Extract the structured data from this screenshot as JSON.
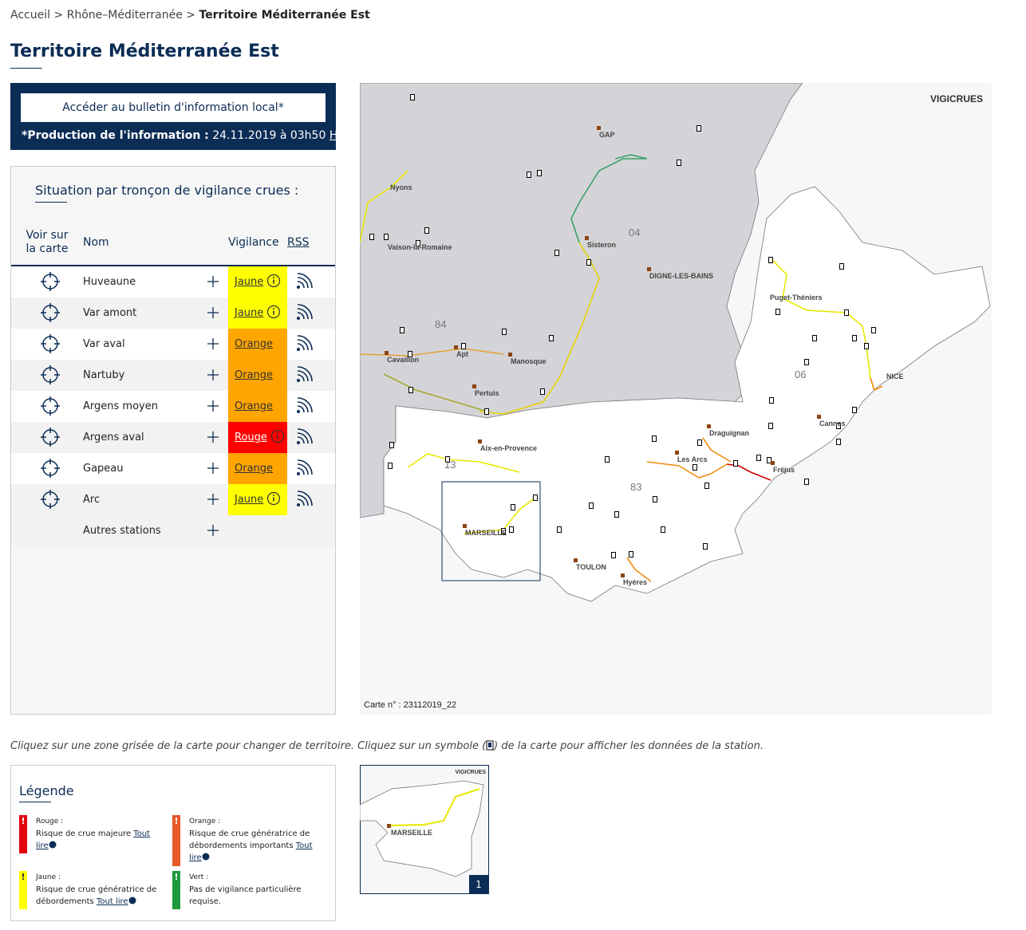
{
  "breadcrumb": {
    "items": [
      "Accueil",
      "Rhône–Méditerranée",
      "Territoire Méditerranée Est"
    ],
    "separator": ">"
  },
  "title": "Territoire Méditerranée Est",
  "bulletin_button": "Accéder au bulletin d'information local*",
  "production": {
    "label": "*Production de l'information :",
    "value": "24.11.2019 à 03h50",
    "abbr": "HL"
  },
  "table": {
    "title": "Situation par tronçon de vigilance crues :",
    "headers": [
      "Voir sur la carte",
      "Nom",
      "Vigilance",
      "RSS"
    ],
    "rows": [
      {
        "name": "Huveaune",
        "level": "Jaune",
        "color": "#ffff00"
      },
      {
        "name": "Var amont",
        "level": "Jaune",
        "color": "#ffff00"
      },
      {
        "name": "Var aval",
        "level": "Orange",
        "color": "#ffa500"
      },
      {
        "name": "Nartuby",
        "level": "Orange",
        "color": "#ffa500"
      },
      {
        "name": "Argens moyen",
        "level": "Orange",
        "color": "#ffa500"
      },
      {
        "name": "Argens aval",
        "level": "Rouge",
        "color": "#ff0000"
      },
      {
        "name": "Gapeau",
        "level": "Orange",
        "color": "#ffa500"
      },
      {
        "name": "Arc",
        "level": "Jaune",
        "color": "#ffff00"
      }
    ],
    "other": "Autres stations"
  },
  "map": {
    "brand": "VIGICRUES",
    "card": "Carte n° : 23112019_22",
    "labels": [
      "GAP",
      "Nyons",
      "Vaison-la-Romaine",
      "Sisteron",
      "04",
      "DIGNE-LES-BAINS",
      "84",
      "Apt",
      "Cavaillon",
      "Manosque",
      "Pertuis",
      "Puget-Théniers",
      "06",
      "NICE",
      "Cannes",
      "Draguignan",
      "Les Arcs",
      "Fréjus",
      "Aix-en-Provence",
      "13",
      "83",
      "MARSEILLE",
      "TOULON",
      "Hyères"
    ]
  },
  "hint": {
    "before": "Cliquez sur une zone grisée de la carte pour changer de territoire. Cliquez sur un symbole (",
    "after": ") de la carte pour afficher les données de la station."
  },
  "legend": {
    "title": "Légende",
    "more": "Tout lire",
    "items": [
      {
        "name": "Rouge :",
        "text": "Risque de crue majeure",
        "color": "#e3000f"
      },
      {
        "name": "Orange :",
        "text": "Risque de crue génératrice de débordements importants",
        "color": "#e8582a"
      },
      {
        "name": "Jaune :",
        "text": "Risque de crue génératrice de débordements",
        "color": "#ffff00"
      },
      {
        "name": "Vert :",
        "text": "Pas de vigilance particulière requise.",
        "color": "#1e9a3c"
      }
    ]
  },
  "minimap": {
    "brand": "VIGICRUES",
    "label": "MARSEILLE",
    "number": "1"
  }
}
